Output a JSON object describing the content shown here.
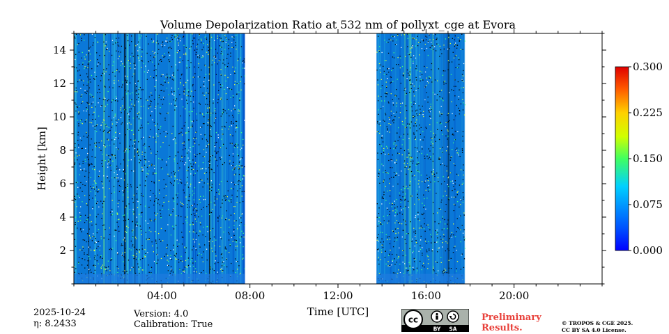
{
  "chart_data": {
    "type": "heatmap",
    "title": "Volume Depolarization Ratio at 532 nm of pollyxt_cge at Evora",
    "xlabel": "Time [UTC]",
    "ylabel": "Height [km]",
    "xlim_hours": [
      0,
      24
    ],
    "ylim_km": [
      0,
      15
    ],
    "x_ticks": [
      {
        "hour": 4,
        "label": "04:00"
      },
      {
        "hour": 8,
        "label": "08:00"
      },
      {
        "hour": 12,
        "label": "12:00"
      },
      {
        "hour": 16,
        "label": "16:00"
      },
      {
        "hour": 20,
        "label": "20:00"
      }
    ],
    "y_ticks": [
      {
        "km": 2,
        "label": "2"
      },
      {
        "km": 4,
        "label": "4"
      },
      {
        "km": 6,
        "label": "6"
      },
      {
        "km": 8,
        "label": "8"
      },
      {
        "km": 10,
        "label": "10"
      },
      {
        "km": 12,
        "label": "12"
      },
      {
        "km": 14,
        "label": "14"
      }
    ],
    "data_segments_hours": [
      {
        "start": 0.0,
        "end": 7.75,
        "top_km": 15
      },
      {
        "start": 13.75,
        "end": 17.75,
        "top_km": 15
      }
    ],
    "colorbar": {
      "min": 0.0,
      "max": 0.3,
      "ticks": [
        {
          "value": 0.0,
          "label": "0.000"
        },
        {
          "value": 0.075,
          "label": "0.075"
        },
        {
          "value": 0.15,
          "label": "0.150"
        },
        {
          "value": 0.225,
          "label": "0.225"
        },
        {
          "value": 0.3,
          "label": "0.300"
        }
      ],
      "colormap": "jet"
    }
  },
  "footer": {
    "date": "2025-10-24",
    "eta": "η: 8.2433",
    "version": "Version: 4.0",
    "calibration": "Calibration: True",
    "preliminary_line1": "Preliminary",
    "preliminary_line2": "Results.",
    "copyright_line1": "© TROPOS & CGE 2025.",
    "copyright_line2": "CC BY SA 4.0 License.",
    "license_by": "BY",
    "license_sa": "SA"
  },
  "colors": {
    "background_blue": "#0a78d8",
    "prelim_red": "#e8403a"
  }
}
